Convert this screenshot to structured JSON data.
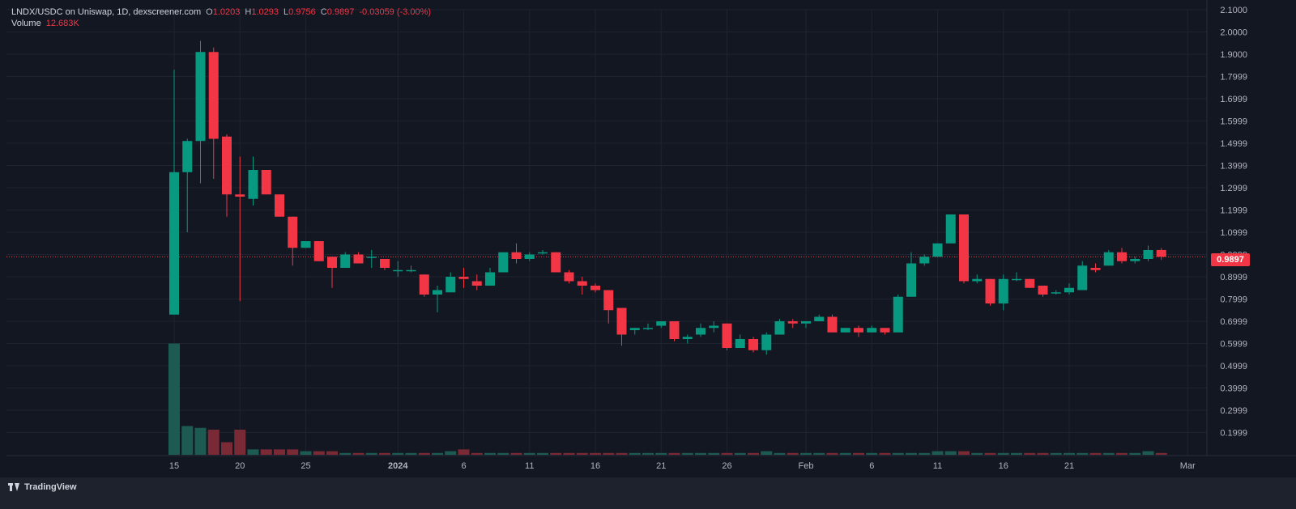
{
  "legend": {
    "symbol": "LNDX/USDC on Uniswap, 1D, dexscreener.com",
    "o_label": "O",
    "o_value": "1.0203",
    "h_label": "H",
    "h_value": "1.0293",
    "l_label": "L",
    "l_value": "0.9756",
    "c_label": "C",
    "c_value": "0.9897",
    "change": "-0.03059 (-3.00%)",
    "volume_label": "Volume",
    "volume_value": "12.683K"
  },
  "last_price_label": "0.9897",
  "brand": "TradingView",
  "colors": {
    "up": "#089981",
    "down": "#f23645",
    "up_volume": "#1d5b52",
    "down_volume": "#7a2a34",
    "background": "#131722",
    "grid": "#1f2330",
    "axis_text": "#b2b5be"
  },
  "chart_data": {
    "type": "candlestick",
    "ylim": [
      0.1,
      2.1
    ],
    "y_ticks": [
      "2.1000",
      "2.0000",
      "1.9000",
      "1.7999",
      "1.6999",
      "1.5999",
      "1.4999",
      "1.3999",
      "1.2999",
      "1.1999",
      "1.0999",
      "0.9999",
      "0.8999",
      "0.7999",
      "0.6999",
      "0.5999",
      "0.4999",
      "0.3999",
      "0.2999",
      "0.1999"
    ],
    "x_ticks": [
      {
        "label": "15",
        "index": 0
      },
      {
        "label": "20",
        "index": 5
      },
      {
        "label": "25",
        "index": 10
      },
      {
        "label": "2024",
        "index": 17
      },
      {
        "label": "6",
        "index": 22
      },
      {
        "label": "11",
        "index": 27
      },
      {
        "label": "16",
        "index": 32
      },
      {
        "label": "21",
        "index": 37
      },
      {
        "label": "26",
        "index": 42
      },
      {
        "label": "Feb",
        "index": 48
      },
      {
        "label": "6",
        "index": 53
      },
      {
        "label": "11",
        "index": 58
      },
      {
        "label": "16",
        "index": 63
      },
      {
        "label": "21",
        "index": 68
      },
      {
        "label": "Mar",
        "index": 77
      }
    ],
    "last_price": 0.9897,
    "candles": [
      {
        "o": 0.73,
        "h": 1.83,
        "l": 0.73,
        "c": 1.37,
        "v": 0.62
      },
      {
        "o": 1.37,
        "h": 1.52,
        "l": 1.1,
        "c": 1.51,
        "v": 0.16
      },
      {
        "o": 1.51,
        "h": 1.96,
        "l": 1.32,
        "c": 1.91,
        "v": 0.15
      },
      {
        "o": 1.91,
        "h": 1.93,
        "l": 1.34,
        "c": 1.52,
        "v": 0.14
      },
      {
        "o": 1.53,
        "h": 1.54,
        "l": 1.17,
        "c": 1.27,
        "v": 0.07
      },
      {
        "o": 1.27,
        "h": 1.44,
        "l": 0.79,
        "c": 1.26,
        "v": 0.14
      },
      {
        "o": 1.25,
        "h": 1.44,
        "l": 1.22,
        "c": 1.38,
        "v": 0.03
      },
      {
        "o": 1.38,
        "h": 1.38,
        "l": 1.27,
        "c": 1.27,
        "v": 0.03
      },
      {
        "o": 1.27,
        "h": 1.27,
        "l": 1.17,
        "c": 1.17,
        "v": 0.03
      },
      {
        "o": 1.17,
        "h": 1.17,
        "l": 0.95,
        "c": 1.03,
        "v": 0.03
      },
      {
        "o": 1.03,
        "h": 1.06,
        "l": 1.03,
        "c": 1.06,
        "v": 0.02
      },
      {
        "o": 1.06,
        "h": 1.06,
        "l": 0.97,
        "c": 0.97,
        "v": 0.02
      },
      {
        "o": 0.99,
        "h": 0.99,
        "l": 0.85,
        "c": 0.94,
        "v": 0.02
      },
      {
        "o": 0.94,
        "h": 1.01,
        "l": 0.94,
        "c": 1.0,
        "v": 0.01
      },
      {
        "o": 1.0,
        "h": 1.01,
        "l": 0.96,
        "c": 0.96,
        "v": 0.01
      },
      {
        "o": 0.99,
        "h": 1.02,
        "l": 0.94,
        "c": 0.99,
        "v": 0.01
      },
      {
        "o": 0.98,
        "h": 0.98,
        "l": 0.93,
        "c": 0.94,
        "v": 0.01
      },
      {
        "o": 0.93,
        "h": 0.97,
        "l": 0.9,
        "c": 0.93,
        "v": 0.01
      },
      {
        "o": 0.93,
        "h": 0.95,
        "l": 0.92,
        "c": 0.93,
        "v": 0.01
      },
      {
        "o": 0.91,
        "h": 0.91,
        "l": 0.81,
        "c": 0.82,
        "v": 0.01
      },
      {
        "o": 0.82,
        "h": 0.86,
        "l": 0.74,
        "c": 0.84,
        "v": 0.01
      },
      {
        "o": 0.83,
        "h": 0.92,
        "l": 0.83,
        "c": 0.9,
        "v": 0.02
      },
      {
        "o": 0.9,
        "h": 0.94,
        "l": 0.85,
        "c": 0.89,
        "v": 0.03
      },
      {
        "o": 0.88,
        "h": 0.91,
        "l": 0.84,
        "c": 0.86,
        "v": 0.01
      },
      {
        "o": 0.86,
        "h": 0.94,
        "l": 0.86,
        "c": 0.92,
        "v": 0.01
      },
      {
        "o": 0.92,
        "h": 1.01,
        "l": 0.92,
        "c": 1.01,
        "v": 0.01
      },
      {
        "o": 1.01,
        "h": 1.05,
        "l": 0.96,
        "c": 0.98,
        "v": 0.01
      },
      {
        "o": 0.98,
        "h": 1.01,
        "l": 0.97,
        "c": 1.0,
        "v": 0.01
      },
      {
        "o": 1.01,
        "h": 1.02,
        "l": 1.0,
        "c": 1.01,
        "v": 0.01
      },
      {
        "o": 1.01,
        "h": 1.01,
        "l": 0.92,
        "c": 0.92,
        "v": 0.01
      },
      {
        "o": 0.92,
        "h": 0.93,
        "l": 0.87,
        "c": 0.88,
        "v": 0.01
      },
      {
        "o": 0.88,
        "h": 0.9,
        "l": 0.82,
        "c": 0.86,
        "v": 0.01
      },
      {
        "o": 0.86,
        "h": 0.87,
        "l": 0.83,
        "c": 0.84,
        "v": 0.01
      },
      {
        "o": 0.84,
        "h": 0.84,
        "l": 0.69,
        "c": 0.75,
        "v": 0.01
      },
      {
        "o": 0.76,
        "h": 0.76,
        "l": 0.59,
        "c": 0.64,
        "v": 0.01
      },
      {
        "o": 0.66,
        "h": 0.67,
        "l": 0.64,
        "c": 0.67,
        "v": 0.01
      },
      {
        "o": 0.67,
        "h": 0.69,
        "l": 0.66,
        "c": 0.67,
        "v": 0.01
      },
      {
        "o": 0.68,
        "h": 0.7,
        "l": 0.67,
        "c": 0.7,
        "v": 0.01
      },
      {
        "o": 0.7,
        "h": 0.7,
        "l": 0.61,
        "c": 0.62,
        "v": 0.01
      },
      {
        "o": 0.62,
        "h": 0.64,
        "l": 0.6,
        "c": 0.63,
        "v": 0.01
      },
      {
        "o": 0.64,
        "h": 0.69,
        "l": 0.63,
        "c": 0.67,
        "v": 0.01
      },
      {
        "o": 0.67,
        "h": 0.7,
        "l": 0.65,
        "c": 0.68,
        "v": 0.01
      },
      {
        "o": 0.69,
        "h": 0.69,
        "l": 0.57,
        "c": 0.58,
        "v": 0.01
      },
      {
        "o": 0.58,
        "h": 0.64,
        "l": 0.58,
        "c": 0.62,
        "v": 0.01
      },
      {
        "o": 0.62,
        "h": 0.63,
        "l": 0.56,
        "c": 0.57,
        "v": 0.01
      },
      {
        "o": 0.57,
        "h": 0.65,
        "l": 0.55,
        "c": 0.64,
        "v": 0.02
      },
      {
        "o": 0.64,
        "h": 0.71,
        "l": 0.64,
        "c": 0.7,
        "v": 0.01
      },
      {
        "o": 0.7,
        "h": 0.71,
        "l": 0.67,
        "c": 0.69,
        "v": 0.01
      },
      {
        "o": 0.69,
        "h": 0.7,
        "l": 0.67,
        "c": 0.7,
        "v": 0.01
      },
      {
        "o": 0.7,
        "h": 0.73,
        "l": 0.7,
        "c": 0.72,
        "v": 0.01
      },
      {
        "o": 0.72,
        "h": 0.73,
        "l": 0.65,
        "c": 0.65,
        "v": 0.01
      },
      {
        "o": 0.65,
        "h": 0.67,
        "l": 0.65,
        "c": 0.67,
        "v": 0.01
      },
      {
        "o": 0.67,
        "h": 0.68,
        "l": 0.63,
        "c": 0.65,
        "v": 0.01
      },
      {
        "o": 0.65,
        "h": 0.68,
        "l": 0.65,
        "c": 0.67,
        "v": 0.01
      },
      {
        "o": 0.67,
        "h": 0.67,
        "l": 0.64,
        "c": 0.65,
        "v": 0.01
      },
      {
        "o": 0.65,
        "h": 0.82,
        "l": 0.65,
        "c": 0.81,
        "v": 0.01
      },
      {
        "o": 0.81,
        "h": 1.01,
        "l": 0.81,
        "c": 0.96,
        "v": 0.01
      },
      {
        "o": 0.96,
        "h": 1.0,
        "l": 0.95,
        "c": 0.99,
        "v": 0.01
      },
      {
        "o": 0.99,
        "h": 1.05,
        "l": 0.99,
        "c": 1.05,
        "v": 0.02
      },
      {
        "o": 1.05,
        "h": 1.18,
        "l": 1.05,
        "c": 1.18,
        "v": 0.02
      },
      {
        "o": 1.18,
        "h": 1.18,
        "l": 0.87,
        "c": 0.88,
        "v": 0.02
      },
      {
        "o": 0.88,
        "h": 0.91,
        "l": 0.87,
        "c": 0.89,
        "v": 0.01
      },
      {
        "o": 0.89,
        "h": 0.89,
        "l": 0.77,
        "c": 0.78,
        "v": 0.01
      },
      {
        "o": 0.78,
        "h": 0.91,
        "l": 0.75,
        "c": 0.89,
        "v": 0.01
      },
      {
        "o": 0.89,
        "h": 0.92,
        "l": 0.88,
        "c": 0.89,
        "v": 0.01
      },
      {
        "o": 0.89,
        "h": 0.89,
        "l": 0.85,
        "c": 0.85,
        "v": 0.01
      },
      {
        "o": 0.86,
        "h": 0.86,
        "l": 0.81,
        "c": 0.82,
        "v": 0.01
      },
      {
        "o": 0.83,
        "h": 0.84,
        "l": 0.82,
        "c": 0.83,
        "v": 0.01
      },
      {
        "o": 0.83,
        "h": 0.87,
        "l": 0.82,
        "c": 0.85,
        "v": 0.01
      },
      {
        "o": 0.84,
        "h": 0.97,
        "l": 0.84,
        "c": 0.95,
        "v": 0.01
      },
      {
        "o": 0.94,
        "h": 0.96,
        "l": 0.92,
        "c": 0.93,
        "v": 0.01
      },
      {
        "o": 0.95,
        "h": 1.02,
        "l": 0.95,
        "c": 1.01,
        "v": 0.01
      },
      {
        "o": 1.01,
        "h": 1.03,
        "l": 0.96,
        "c": 0.97,
        "v": 0.01
      },
      {
        "o": 0.97,
        "h": 0.99,
        "l": 0.96,
        "c": 0.98,
        "v": 0.01
      },
      {
        "o": 0.98,
        "h": 1.04,
        "l": 0.97,
        "c": 1.02,
        "v": 0.02
      },
      {
        "o": 1.0203,
        "h": 1.0293,
        "l": 0.9756,
        "c": 0.9897,
        "v": 0.01
      }
    ]
  }
}
